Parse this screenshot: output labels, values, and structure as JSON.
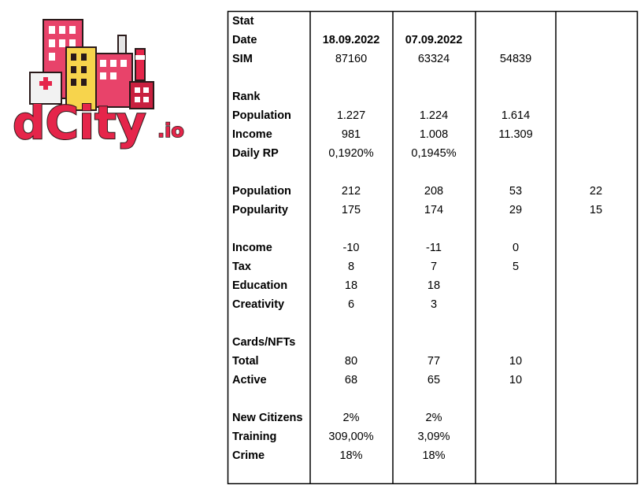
{
  "logo": {
    "name": "dCity",
    "suffix": ".io"
  },
  "table": {
    "sections": [
      [
        {
          "label": "Stat",
          "cells": [
            null,
            null,
            null,
            null
          ]
        },
        {
          "label": "Date",
          "cells": [
            "18.09.2022",
            "07.09.2022",
            null,
            null
          ]
        },
        {
          "label": "SIM",
          "cells": [
            "87160",
            "63324",
            "54839",
            null
          ]
        }
      ],
      [
        {
          "label": "Rank",
          "cells": [
            null,
            null,
            null,
            null
          ]
        },
        {
          "label": "Population",
          "cells": [
            "1.227",
            "1.224",
            "1.614",
            null
          ]
        },
        {
          "label": "Income",
          "cells": [
            "981",
            "1.008",
            "11.309",
            null
          ]
        },
        {
          "label": "Daily RP",
          "cells": [
            "0,1920%",
            "0,1945%",
            null,
            null
          ]
        }
      ],
      [
        {
          "label": "Population",
          "cells": [
            "212",
            "208",
            "53",
            "22"
          ]
        },
        {
          "label": "Popularity",
          "cells": [
            "175",
            "174",
            "29",
            "15"
          ]
        }
      ],
      [
        {
          "label": "Income",
          "cells": [
            "-10",
            "-11",
            "0",
            null
          ]
        },
        {
          "label": "Tax",
          "cells": [
            "8",
            "7",
            "5",
            null
          ]
        },
        {
          "label": "Education",
          "cells": [
            "18",
            "18",
            null,
            null
          ]
        },
        {
          "label": "Creativity",
          "cells": [
            "6",
            "3",
            null,
            null
          ]
        }
      ],
      [
        {
          "label": "Cards/NFTs",
          "cells": [
            null,
            null,
            null,
            null
          ]
        },
        {
          "label": "Total",
          "cells": [
            "80",
            "77",
            "10",
            null
          ]
        },
        {
          "label": "Active",
          "cells": [
            "68",
            "65",
            "10",
            null
          ]
        }
      ],
      [
        {
          "label": "New Citizens",
          "cells": [
            "2%",
            "2%",
            null,
            null
          ]
        },
        {
          "label": "Training",
          "cells": [
            "309,00%",
            "3,09%",
            null,
            null
          ]
        },
        {
          "label": "Crime",
          "cells": [
            "18%",
            "18%",
            null,
            null
          ]
        }
      ]
    ]
  }
}
